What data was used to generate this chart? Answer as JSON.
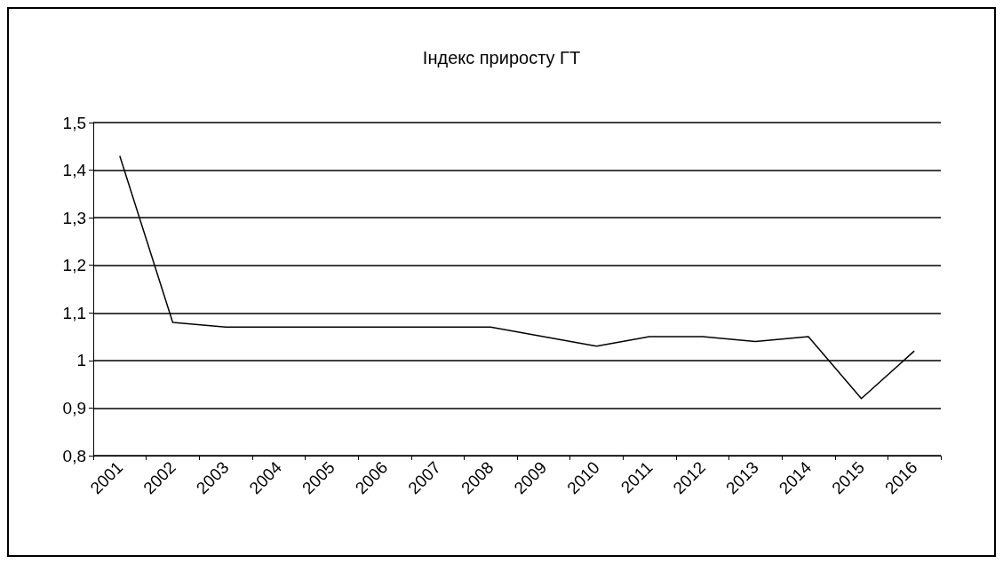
{
  "chart_data": {
    "type": "line",
    "title": "Індекс приросту ГТ",
    "categories": [
      "2001",
      "2002",
      "2003",
      "2004",
      "2005",
      "2006",
      "2007",
      "2008",
      "2009",
      "2010",
      "2011",
      "2012",
      "2013",
      "2014",
      "2015",
      "2016"
    ],
    "series": [
      {
        "color": "#000000",
        "values": [
          1.43,
          1.08,
          1.07,
          1.07,
          1.07,
          1.07,
          1.07,
          1.07,
          1.05,
          1.03,
          1.05,
          1.05,
          1.04,
          1.05,
          0.92,
          1.02
        ]
      }
    ],
    "ylim": [
      0.8,
      1.5
    ],
    "yticks": [
      {
        "value": 0.8,
        "label": "0,8"
      },
      {
        "value": 0.9,
        "label": "0,9"
      },
      {
        "value": 1,
        "label": "1"
      },
      {
        "value": 1.1,
        "label": "1,1"
      },
      {
        "value": 1.2,
        "label": "1,2"
      },
      {
        "value": 1.3,
        "label": "1,3"
      },
      {
        "value": 1.4,
        "label": "1,4"
      },
      {
        "value": 1.5,
        "label": "1,5"
      }
    ],
    "grid": "y",
    "marker": "none",
    "line_style": "solid"
  }
}
